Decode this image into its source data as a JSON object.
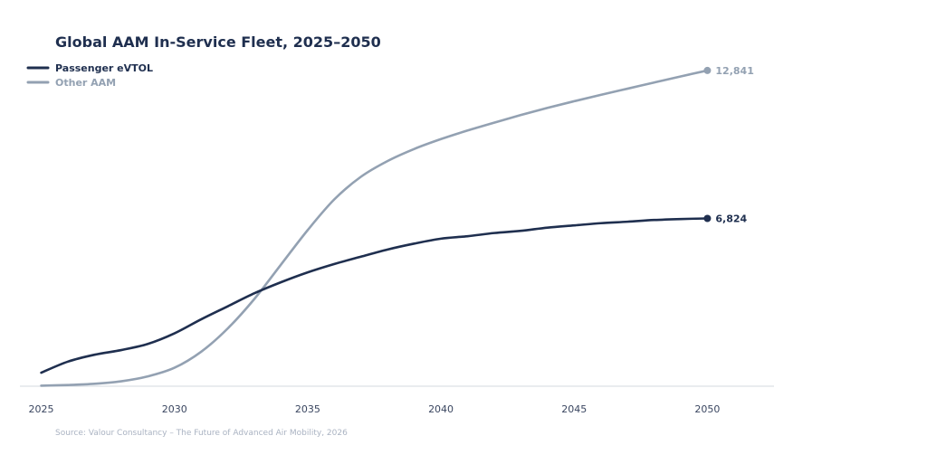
{
  "chart_data": {
    "type": "line",
    "title": "Global AAM In-Service Fleet, 2025–2050",
    "xlabel": "",
    "ylabel": "",
    "x": [
      2025,
      2026,
      2027,
      2028,
      2029,
      2030,
      2031,
      2032,
      2033,
      2034,
      2035,
      2036,
      2037,
      2038,
      2039,
      2040,
      2041,
      2042,
      2043,
      2044,
      2045,
      2046,
      2047,
      2048,
      2049,
      2050
    ],
    "xticks": [
      2025,
      2030,
      2035,
      2040,
      2045,
      2050
    ],
    "xtick_labels": [
      "2025",
      "2030",
      "2035",
      "2040",
      "2045",
      "2050"
    ],
    "xlim": [
      2024.2,
      2052.5
    ],
    "ylim": [
      0,
      13500
    ],
    "grid": false,
    "legend_position": "top-left",
    "series": [
      {
        "name": "Passenger eVTOL",
        "color": "#1f2f4f",
        "values": [
          550,
          1000,
          1280,
          1470,
          1720,
          2150,
          2720,
          3250,
          3780,
          4230,
          4630,
          4970,
          5270,
          5560,
          5800,
          6000,
          6100,
          6230,
          6320,
          6450,
          6540,
          6630,
          6690,
          6760,
          6800,
          6824
        ],
        "end_label": "6,824"
      },
      {
        "name": "Other AAM",
        "color": "#93a1b2",
        "values": [
          20,
          50,
          100,
          200,
          400,
          750,
          1400,
          2350,
          3550,
          4950,
          6350,
          7600,
          8520,
          9160,
          9650,
          10050,
          10400,
          10720,
          11030,
          11320,
          11590,
          11850,
          12100,
          12350,
          12600,
          12841
        ],
        "end_label": "12,841"
      }
    ],
    "source": "Source: Valour Consultancy – The Future of Advanced Air Mobility, 2026"
  }
}
